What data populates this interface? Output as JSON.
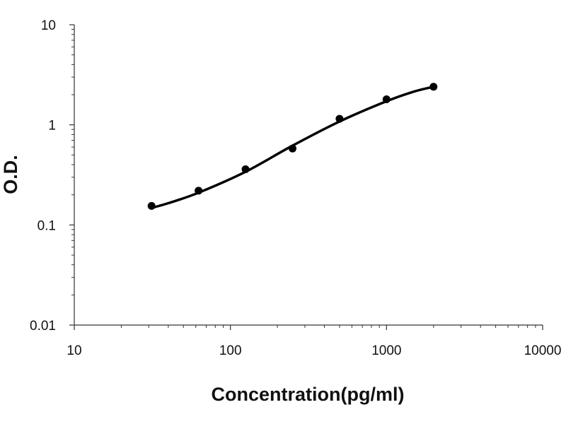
{
  "chart_data": {
    "type": "scatter",
    "title": "",
    "xlabel": "Concentration(pg/ml)",
    "ylabel": "O.D.",
    "x_scale": "log",
    "y_scale": "log",
    "xlim": [
      10,
      10000
    ],
    "ylim": [
      0.01,
      10
    ],
    "x_ticks": [
      10,
      100,
      1000,
      10000
    ],
    "x_tick_labels": [
      "10",
      "100",
      "1000",
      "10000"
    ],
    "y_ticks": [
      0.01,
      0.1,
      1,
      10
    ],
    "y_tick_labels": [
      "0.01",
      "0.1",
      "1",
      "10"
    ],
    "grid": false,
    "legend": "none",
    "series": [
      {
        "points": [
          {
            "x": 31.25,
            "y": 0.155
          },
          {
            "x": 62.5,
            "y": 0.22
          },
          {
            "x": 125,
            "y": 0.36
          },
          {
            "x": 250,
            "y": 0.58
          },
          {
            "x": 500,
            "y": 1.15
          },
          {
            "x": 1000,
            "y": 1.8
          },
          {
            "x": 2000,
            "y": 2.4
          }
        ],
        "fit_curve": {
          "x": [
            31.25,
            40,
            62.5,
            125,
            250,
            500,
            1000,
            1500,
            2000
          ],
          "y": [
            0.148,
            0.165,
            0.21,
            0.34,
            0.62,
            1.08,
            1.72,
            2.15,
            2.4
          ]
        }
      }
    ],
    "colors": {
      "marker": "#000000",
      "line": "#000000",
      "axis": "#333333"
    }
  }
}
